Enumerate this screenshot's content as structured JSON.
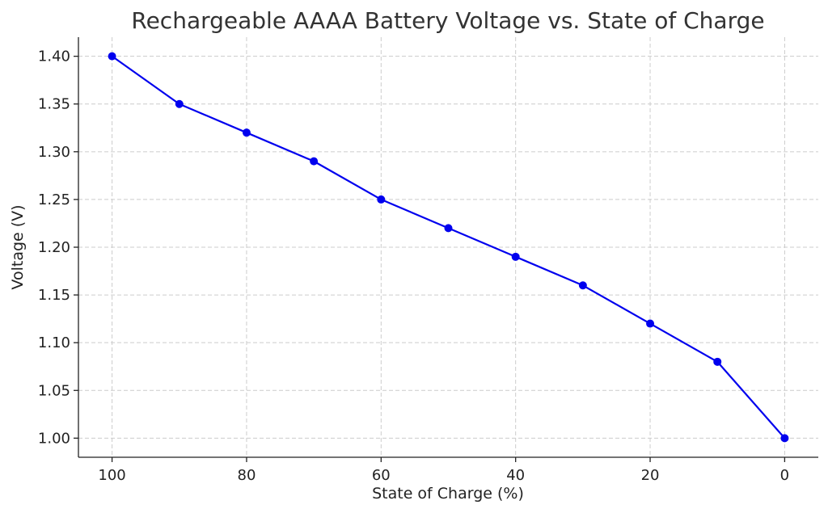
{
  "chart_data": {
    "type": "line",
    "title": "Rechargeable AAAA Battery Voltage vs. State of Charge",
    "xlabel": "State of Charge (%)",
    "ylabel": "Voltage (V)",
    "x": [
      100,
      90,
      80,
      70,
      60,
      50,
      40,
      30,
      20,
      10,
      0
    ],
    "series": [
      {
        "values": [
          1.4,
          1.35,
          1.32,
          1.29,
          1.25,
          1.22,
          1.19,
          1.16,
          1.12,
          1.08,
          1.0
        ]
      }
    ],
    "xlim": [
      105,
      -5
    ],
    "ylim": [
      0.98,
      1.42
    ],
    "xticks": [
      100,
      80,
      60,
      40,
      20,
      0
    ],
    "xtick_labels": [
      "100",
      "80",
      "60",
      "40",
      "20",
      "0"
    ],
    "yticks": [
      1.0,
      1.05,
      1.1,
      1.15,
      1.2,
      1.25,
      1.3,
      1.35,
      1.4
    ],
    "ytick_labels": [
      "1.00",
      "1.05",
      "1.10",
      "1.15",
      "1.20",
      "1.25",
      "1.30",
      "1.35",
      "1.40"
    ],
    "x_inverted": true,
    "grid": true,
    "line_color": "#0000ee",
    "marker": "circle"
  }
}
